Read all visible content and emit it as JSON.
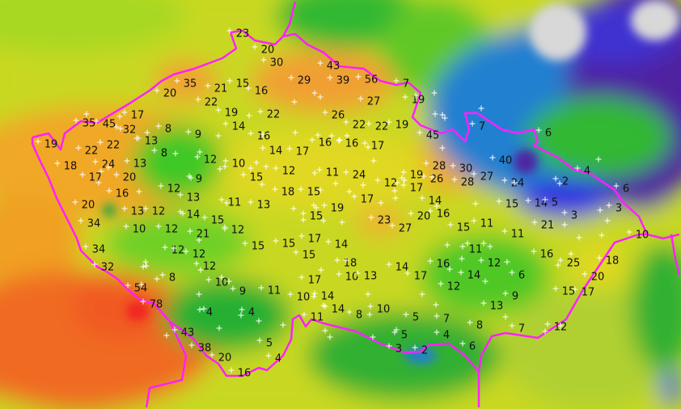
{
  "map": {
    "colors": {
      "border": "#ff20ff",
      "low_blue": "#2080d0",
      "very_low_purple": "#5020a0",
      "green": "#30b830",
      "yellow": "#e0d820",
      "orange": "#f0a020",
      "red": "#f04020"
    },
    "station_marker_icon": "white-plus-cross",
    "values": [
      23,
      20,
      30,
      43,
      29,
      39,
      56,
      7,
      35,
      21,
      15,
      16,
      20,
      22,
      27,
      19,
      19,
      22,
      26,
      22,
      22,
      19,
      45,
      7,
      6,
      35,
      45,
      17,
      32,
      19,
      13,
      8,
      9,
      14,
      16,
      22,
      22,
      8,
      16,
      16,
      17,
      14,
      17,
      18,
      24,
      13,
      12,
      10,
      12,
      11,
      24,
      12,
      19,
      17,
      28,
      26,
      30,
      28,
      27,
      40,
      24,
      17,
      20,
      9,
      15,
      12,
      13,
      18,
      15,
      11,
      13,
      2,
      4,
      6,
      16,
      17,
      14,
      15,
      14,
      5,
      3,
      3,
      20,
      13,
      12,
      14,
      15,
      19,
      15,
      23,
      27,
      20,
      16,
      15,
      11,
      21,
      10,
      34,
      10,
      12,
      21,
      12,
      17,
      14,
      11,
      15,
      15,
      15,
      34,
      12,
      12,
      11,
      16,
      25,
      18,
      32,
      12,
      18,
      14,
      16,
      12,
      6,
      20,
      10,
      13,
      17,
      14,
      17,
      8,
      10,
      54,
      9,
      11,
      12,
      15,
      17,
      9,
      10,
      14,
      78,
      13,
      4,
      4,
      14,
      8,
      10,
      5,
      7,
      11,
      8,
      7,
      12,
      43,
      5,
      5,
      4,
      38,
      6,
      3,
      2,
      4,
      20,
      16
    ]
  }
}
